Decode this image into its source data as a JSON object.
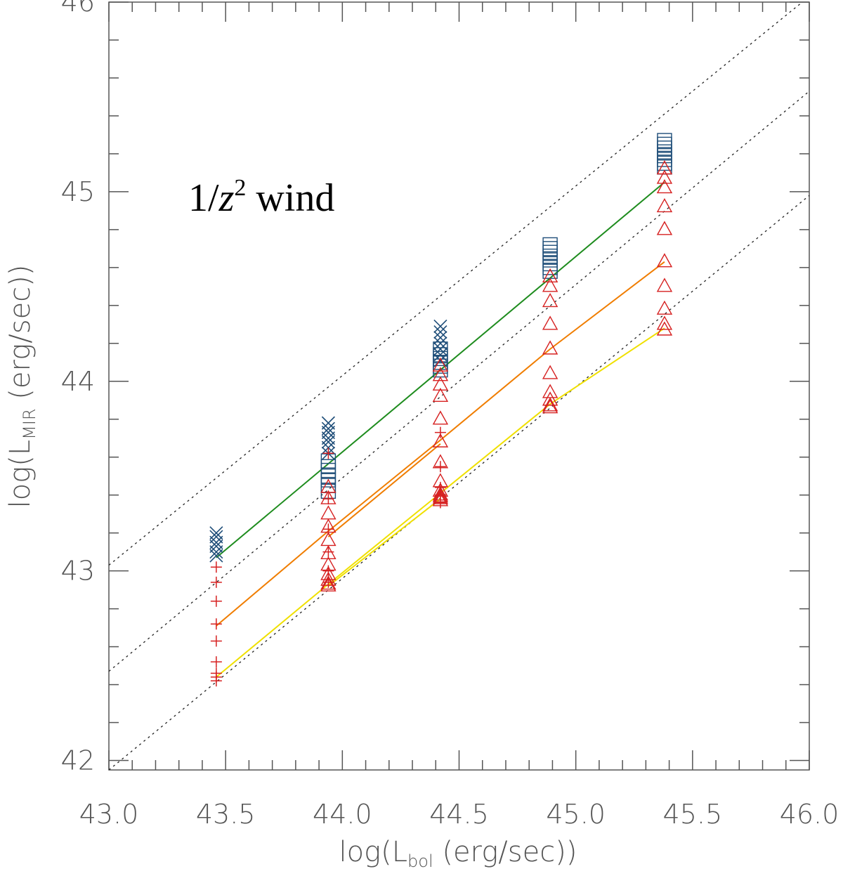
{
  "chart_data": {
    "type": "scatter",
    "title": "",
    "annotation": {
      "prefix": "1/",
      "var": "z",
      "sup": "2",
      "suffix": " wind"
    },
    "xlabel": {
      "pre": "log(L",
      "sub": "bol",
      "post": " (erg/sec))"
    },
    "ylabel": {
      "pre": "log(L",
      "sub": "MIR",
      "post": " (erg/sec))"
    },
    "xlim": [
      43.0,
      46.0
    ],
    "ylim": [
      41.95,
      46.0
    ],
    "xticks": [
      {
        "v": 43.0,
        "label": "43.0"
      },
      {
        "v": 43.5,
        "label": "43.5"
      },
      {
        "v": 44.0,
        "label": "44.0"
      },
      {
        "v": 44.5,
        "label": "44.5"
      },
      {
        "v": 45.0,
        "label": "45.0"
      },
      {
        "v": 45.5,
        "label": "45.5"
      },
      {
        "v": 46.0,
        "label": "46.0"
      }
    ],
    "yticks": [
      {
        "v": 42,
        "label": "42"
      },
      {
        "v": 43,
        "label": "43"
      },
      {
        "v": 44,
        "label": "44"
      },
      {
        "v": 45,
        "label": "45"
      },
      {
        "v": 46,
        "label": "46"
      }
    ],
    "x_minor_step": 0.1,
    "y_minor_step": 0.2,
    "reference_lines": [
      {
        "name": "dotted-line-1",
        "x": [
          43.0,
          46.0
        ],
        "y": [
          43.03,
          46.03
        ]
      },
      {
        "name": "dotted-line-2",
        "x": [
          43.0,
          46.0
        ],
        "y": [
          42.47,
          45.53
        ]
      },
      {
        "name": "dotted-line-3",
        "x": [
          43.0,
          46.0
        ],
        "y": [
          41.95,
          44.98
        ]
      }
    ],
    "series": [
      {
        "name": "x-markers",
        "marker": "x",
        "color": "#1f4e79",
        "x": [
          43.46,
          43.46,
          43.46,
          43.46,
          43.46,
          43.46,
          43.94,
          43.94,
          43.94,
          43.94,
          43.94,
          43.94,
          43.94,
          44.42,
          44.42,
          44.42,
          44.42,
          44.42,
          44.42,
          44.42
        ],
        "y": [
          43.2,
          43.18,
          43.15,
          43.13,
          43.1,
          43.08,
          43.78,
          43.75,
          43.73,
          43.7,
          43.68,
          43.65,
          43.62,
          44.29,
          44.26,
          44.23,
          44.2,
          44.17,
          44.14,
          44.11
        ]
      },
      {
        "name": "square-markers",
        "marker": "square",
        "color": "#1f4e79",
        "x": [
          43.94,
          43.94,
          43.94,
          43.94,
          43.94,
          43.94,
          43.94,
          44.42,
          44.42,
          44.42,
          44.42,
          44.42,
          44.42,
          44.89,
          44.89,
          44.89,
          44.89,
          44.89,
          44.89,
          44.89,
          44.89,
          45.38,
          45.38,
          45.38,
          45.38,
          45.38,
          45.38,
          45.38,
          45.38
        ],
        "y": [
          43.58,
          43.55,
          43.53,
          43.5,
          43.48,
          43.45,
          43.42,
          44.17,
          44.14,
          44.12,
          44.1,
          44.08,
          44.06,
          44.72,
          44.7,
          44.68,
          44.66,
          44.64,
          44.62,
          44.6,
          44.58,
          45.27,
          45.25,
          45.23,
          45.21,
          45.19,
          45.17,
          45.15,
          45.13
        ]
      },
      {
        "name": "plus-markers",
        "marker": "plus",
        "color": "#d62020",
        "x": [
          43.46,
          43.46,
          43.46,
          43.46,
          43.46,
          43.46,
          43.46,
          43.46,
          43.46,
          43.94,
          43.94,
          43.94,
          43.94,
          43.94,
          43.94,
          44.42,
          44.42,
          44.42,
          44.42,
          44.42
        ],
        "y": [
          43.02,
          42.94,
          42.84,
          42.72,
          42.63,
          42.52,
          42.46,
          42.44,
          42.42,
          43.62,
          43.38,
          43.22,
          43.1,
          43.0,
          42.94,
          43.73,
          43.55,
          43.44,
          43.4,
          43.36
        ]
      },
      {
        "name": "triangle-markers",
        "marker": "triangle",
        "color": "#d62020",
        "x": [
          43.94,
          43.94,
          43.94,
          43.94,
          43.94,
          43.94,
          43.94,
          43.94,
          43.94,
          43.94,
          43.94,
          44.42,
          44.42,
          44.42,
          44.42,
          44.42,
          44.42,
          44.42,
          44.42,
          44.42,
          44.42,
          44.42,
          44.42,
          44.42,
          44.89,
          44.89,
          44.89,
          44.89,
          44.89,
          44.89,
          44.89,
          44.89,
          44.89,
          44.89,
          45.38,
          45.38,
          45.38,
          45.38,
          45.38,
          45.38,
          45.38,
          45.38,
          45.38,
          45.38
        ],
        "y": [
          43.44,
          43.38,
          43.3,
          43.23,
          43.16,
          43.09,
          43.03,
          42.98,
          42.95,
          42.93,
          42.92,
          44.08,
          44.03,
          43.98,
          43.92,
          43.8,
          43.68,
          43.57,
          43.47,
          43.42,
          43.4,
          43.39,
          43.38,
          43.37,
          44.55,
          44.5,
          44.42,
          44.3,
          44.17,
          44.04,
          43.94,
          43.9,
          43.87,
          43.86,
          45.12,
          45.07,
          45.02,
          44.92,
          44.8,
          44.63,
          44.5,
          44.38,
          44.3,
          44.27
        ]
      }
    ],
    "lines": [
      {
        "name": "green-line",
        "color": "#1e8c1e",
        "x": [
          43.46,
          45.38
        ],
        "y": [
          43.07,
          45.05
        ]
      },
      {
        "name": "orange-line-1",
        "color": "#f07d00",
        "x": [
          43.46,
          43.94,
          44.42,
          44.89,
          45.38
        ],
        "y": [
          42.71,
          43.21,
          43.69,
          44.17,
          44.63
        ]
      },
      {
        "name": "orange-line-2",
        "color": "#f07d00",
        "x": [
          43.94,
          44.42
        ],
        "y": [
          43.18,
          43.67
        ]
      },
      {
        "name": "yellow-line-1",
        "color": "#f0e000",
        "x": [
          43.46,
          43.94,
          44.42,
          44.89,
          45.38
        ],
        "y": [
          42.44,
          42.93,
          43.41,
          43.88,
          44.28
        ]
      },
      {
        "name": "yellow-line-2",
        "color": "#f0e000",
        "x": [
          43.94,
          44.42
        ],
        "y": [
          42.92,
          43.38
        ]
      }
    ]
  }
}
